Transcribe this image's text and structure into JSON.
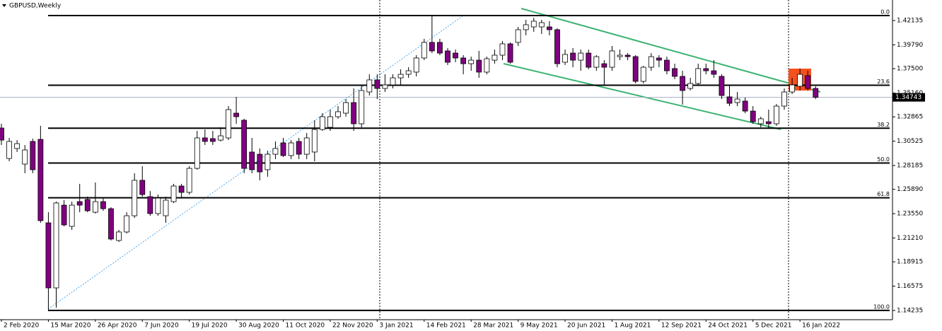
{
  "chart_data": {
    "type": "candlestick",
    "title": "GBPUSD,Weekly",
    "categories": [
      "2 Feb 2020",
      null,
      null,
      null,
      null,
      null,
      "15 Mar 2020",
      null,
      null,
      null,
      null,
      null,
      "26 Apr 2020",
      null,
      null,
      null,
      null,
      null,
      "7 Jun 2020",
      null,
      null,
      null,
      null,
      null,
      "19 Jul 2020",
      null,
      null,
      null,
      null,
      null,
      "30 Aug 2020",
      null,
      null,
      null,
      null,
      null,
      "11 Oct 2020",
      null,
      null,
      null,
      null,
      null,
      "22 Nov 2020",
      null,
      null,
      null,
      null,
      null,
      "3 Jan 2021",
      null,
      null,
      null,
      null,
      null,
      "14 Feb 2021",
      null,
      null,
      null,
      null,
      null,
      "28 Mar 2021",
      null,
      null,
      null,
      null,
      null,
      "9 May 2021",
      null,
      null,
      null,
      null,
      null,
      "20 Jun 2021",
      null,
      null,
      null,
      null,
      null,
      "1 Aug 2021",
      null,
      null,
      null,
      null,
      null,
      "12 Sep 2021",
      null,
      null,
      null,
      null,
      null,
      "24 Oct 2021",
      null,
      null,
      null,
      null,
      null,
      "5 Dec 2021",
      null,
      null,
      null,
      null,
      null,
      "16 Jan 2022",
      null,
      null
    ],
    "open": [
      1.3179,
      1.2886,
      1.2982,
      1.2832,
      1.305,
      1.307,
      1.2267,
      1.1641,
      1.2437,
      1.2233,
      1.2471,
      1.2492,
      1.2369,
      1.2471,
      1.2403,
      1.2097,
      1.2179,
      1.2335,
      1.2676,
      1.2519,
      1.2356,
      1.2335,
      1.2471,
      1.2621,
      1.256,
      1.2791,
      1.3084,
      1.3077,
      1.3063,
      1.3084,
      1.3322,
      1.3254,
      1.2948,
      1.2927,
      1.2778,
      1.2927,
      1.3036,
      1.2914,
      1.305,
      1.2927,
      1.2948,
      1.3165,
      1.3186,
      1.3288,
      1.3322,
      1.3424,
      1.322,
      1.3526,
      1.3642,
      1.356,
      1.3594,
      1.3662,
      1.3696,
      1.3717,
      1.3853,
      1.4003,
      1.4003,
      1.3921,
      1.39,
      1.3853,
      1.3798,
      1.3832,
      1.3717,
      1.3832,
      1.388,
      1.3989,
      1.4003,
      1.4125,
      1.4152,
      1.4152,
      1.4152,
      1.4125,
      1.3812,
      1.39,
      1.3832,
      1.39,
      1.3764,
      1.3798,
      1.3764,
      1.3866,
      1.388,
      1.3866,
      1.3628,
      1.3764,
      1.3853,
      1.3832,
      1.3751,
      1.3676,
      1.356,
      1.3608,
      1.3751,
      1.373,
      1.3676,
      1.3479,
      1.3424,
      1.3438,
      1.3342,
      1.322,
      1.324,
      1.322,
      1.339,
      1.3526,
      1.3581,
      1.3683,
      1.356
    ],
    "high": [
      1.322,
      1.3084,
      1.3063,
      1.3016,
      1.3077,
      1.32,
      1.2369,
      1.2471,
      1.2485,
      1.2471,
      1.2642,
      1.2519,
      1.2655,
      1.2505,
      1.2417,
      1.2199,
      1.2369,
      1.2744,
      1.2812,
      1.2573,
      1.2539,
      1.2519,
      1.2642,
      1.2642,
      1.2812,
      1.3152,
      1.3165,
      1.3152,
      1.3186,
      1.339,
      1.3479,
      1.3268,
      1.3084,
      1.2982,
      1.2961,
      1.305,
      1.3084,
      1.3063,
      1.3084,
      1.3131,
      1.3254,
      1.3322,
      1.3356,
      1.339,
      1.3458,
      1.356,
      1.3594,
      1.3696,
      1.3696,
      1.3696,
      1.3696,
      1.3744,
      1.3764,
      1.388,
      1.4037,
      1.4261,
      1.4037,
      1.3948,
      1.3934,
      1.388,
      1.3866,
      1.3921,
      1.3866,
      1.3934,
      1.4016,
      1.4003,
      1.4152,
      1.422,
      1.4241,
      1.422,
      1.4207,
      1.4139,
      1.3934,
      1.3948,
      1.3934,
      1.3934,
      1.388,
      1.3832,
      1.3968,
      1.3934,
      1.39,
      1.388,
      1.3778,
      1.39,
      1.388,
      1.3866,
      1.3798,
      1.373,
      1.3662,
      1.3798,
      1.3798,
      1.3832,
      1.3696,
      1.3594,
      1.3526,
      1.3472,
      1.339,
      1.3288,
      1.3356,
      1.341,
      1.356,
      1.3662,
      1.3751,
      1.373,
      1.3581
    ],
    "low": [
      1.3016,
      1.2859,
      1.2948,
      1.2744,
      1.2744,
      1.2267,
      1.1417,
      1.1451,
      1.2233,
      1.2199,
      1.2369,
      1.2369,
      1.2356,
      1.2383,
      1.2097,
      1.2083,
      1.2165,
      1.2315,
      1.2519,
      1.2335,
      1.2335,
      1.2267,
      1.2458,
      1.2505,
      1.2539,
      1.2778,
      1.3016,
      1.3016,
      1.305,
      1.3063,
      1.322,
      1.2744,
      1.2744,
      1.2676,
      1.271,
      1.288,
      1.29,
      1.288,
      1.288,
      1.288,
      1.2859,
      1.3152,
      1.3152,
      1.3268,
      1.3288,
      1.3152,
      1.3186,
      1.3492,
      1.3458,
      1.3526,
      1.356,
      1.3594,
      1.3662,
      1.3676,
      1.3832,
      1.39,
      1.388,
      1.3785,
      1.3812,
      1.3696,
      1.373,
      1.3662,
      1.3696,
      1.3798,
      1.3832,
      1.3798,
      1.3968,
      1.4071,
      1.4105,
      1.4084,
      1.4071,
      1.3764,
      1.3785,
      1.3764,
      1.373,
      1.3744,
      1.373,
      1.3594,
      1.373,
      1.3832,
      1.3832,
      1.3608,
      1.3608,
      1.373,
      1.3764,
      1.3696,
      1.3649,
      1.3404,
      1.354,
      1.3594,
      1.3696,
      1.3662,
      1.3458,
      1.339,
      1.339,
      1.3322,
      1.322,
      1.3186,
      1.3172,
      1.32,
      1.3356,
      1.3506,
      1.354,
      1.354,
      1.3458
    ],
    "close": [
      1.3063,
      1.305,
      1.3029,
      1.2968,
      1.2778,
      1.2288,
      1.1641,
      1.2458,
      1.2247,
      1.2437,
      1.2437,
      1.2383,
      1.2471,
      1.2403,
      1.2111,
      1.2179,
      1.2335,
      1.2676,
      1.2539,
      1.2356,
      1.2505,
      1.2485,
      1.2621,
      1.256,
      1.2791,
      1.3084,
      1.305,
      1.305,
      1.3104,
      1.3356,
      1.3288,
      1.2791,
      1.2778,
      1.2757,
      1.2927,
      1.2982,
      1.2914,
      1.3036,
      1.2927,
      1.3084,
      1.3165,
      1.3288,
      1.3288,
      1.3336,
      1.3424,
      1.322,
      1.354,
      1.3642,
      1.356,
      1.3594,
      1.3662,
      1.3696,
      1.373,
      1.3853,
      1.4003,
      1.3921,
      1.39,
      1.3812,
      1.3853,
      1.3798,
      1.3832,
      1.3717,
      1.3846,
      1.388,
      1.3989,
      1.3812,
      1.4125,
      1.4173,
      1.4207,
      1.4193,
      1.4125,
      1.3798,
      1.3887,
      1.3832,
      1.39,
      1.3764,
      1.3866,
      1.3764,
      1.3921,
      1.388,
      1.3866,
      1.3628,
      1.3764,
      1.3866,
      1.3832,
      1.373,
      1.3676,
      1.354,
      1.3608,
      1.3751,
      1.373,
      1.3696,
      1.3492,
      1.3417,
      1.3458,
      1.3342,
      1.324,
      1.3268,
      1.322,
      1.339,
      1.3526,
      1.3594,
      1.3696,
      1.356,
      1.3474
    ],
    "up_color": "#ffffff",
    "down_color": "#800080",
    "outline_color": "#000000",
    "ylim": [
      1.1335,
      1.44108
    ],
    "yticks": [
      1.42135,
      {
        "value": 1.3979,
        "label": "1.39790"
      },
      {
        "value": 1.375,
        "label": "1.37500"
      },
      {
        "value": 1.3516,
        "label": "1.35160"
      },
      1.32865,
      1.30525,
      1.28185,
      {
        "value": 1.2589,
        "label": "1.25890"
      },
      {
        "value": 1.2355,
        "label": "1.23550"
      },
      {
        "value": 1.2121,
        "label": "1.21210"
      },
      1.18915,
      1.16575,
      1.14235
    ],
    "last_price": 1.34743,
    "fib_levels": [
      {
        "label": "0.0",
        "price": 1.4261
      },
      {
        "label": "23.6",
        "price": 1.3591
      },
      {
        "label": "38.2",
        "price": 1.3177
      },
      {
        "label": "50.0",
        "price": 1.2842
      },
      {
        "label": "61.8",
        "price": 1.2508
      },
      {
        "label": "100.0",
        "price": 1.1424
      }
    ]
  }
}
